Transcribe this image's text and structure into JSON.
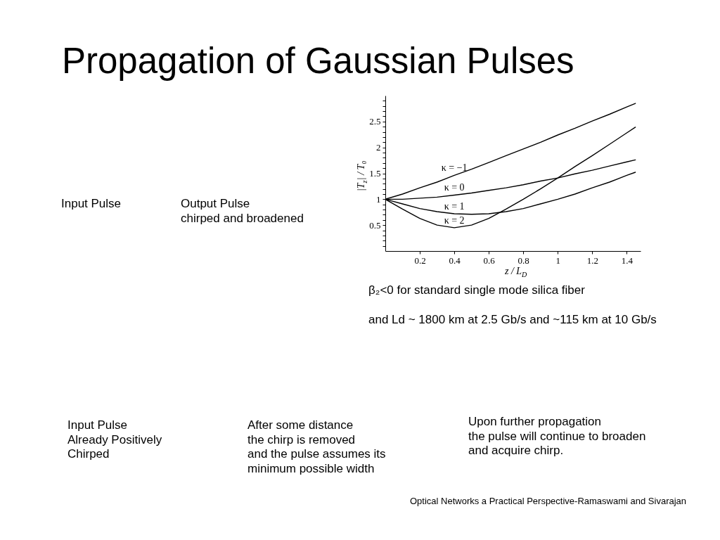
{
  "chart_data": {
    "type": "line",
    "title": "Propagation of Gaussian Pulses",
    "xlabel": "z / L$_{D}$",
    "ylabel": "|T$_{z}$| / T₀",
    "x": [
      0,
      0.1,
      0.2,
      0.3,
      0.4,
      0.5,
      0.6,
      0.7,
      0.8,
      0.9,
      1.0,
      1.1,
      1.2,
      1.3,
      1.4,
      1.45
    ],
    "xlim": [
      0,
      1.48
    ],
    "ylim": [
      0,
      3
    ],
    "xticks": [
      0.2,
      0.4,
      0.6,
      0.8,
      1,
      1.2,
      1.4
    ],
    "yticks": [
      {
        "value": 0.1,
        "label": null
      },
      {
        "value": 0.2,
        "label": null
      },
      {
        "value": 0.3,
        "label": null
      },
      {
        "value": 0.4,
        "label": null
      },
      0.5,
      {
        "value": 0.6,
        "label": null
      },
      {
        "value": 0.7,
        "label": null
      },
      {
        "value": 0.8,
        "label": null
      },
      {
        "value": 0.9,
        "label": null
      },
      1,
      {
        "value": 1.1,
        "label": null
      },
      {
        "value": 1.2,
        "label": null
      },
      {
        "value": 1.3,
        "label": null
      },
      {
        "value": 1.4,
        "label": null
      },
      1.5,
      {
        "value": 1.6,
        "label": null
      },
      {
        "value": 1.7,
        "label": null
      },
      {
        "value": 1.8,
        "label": null
      },
      {
        "value": 1.9,
        "label": null
      },
      2,
      {
        "value": 2.1,
        "label": null
      },
      {
        "value": 2.2,
        "label": null
      },
      {
        "value": 2.3,
        "label": null
      },
      {
        "value": 2.4,
        "label": null
      },
      2.5,
      {
        "value": 2.6,
        "label": null
      },
      {
        "value": 2.7,
        "label": null
      },
      {
        "value": 2.8,
        "label": null
      },
      {
        "value": 2.9,
        "label": null
      }
    ],
    "grid": false,
    "legend": false,
    "marker": "none",
    "line_style": "solid",
    "series": [
      {
        "name": "κ = −1",
        "color": "#000000",
        "values": [
          1.0,
          1.1,
          1.22,
          1.33,
          1.46,
          1.58,
          1.71,
          1.84,
          1.97,
          2.1,
          2.24,
          2.37,
          2.51,
          2.64,
          2.78,
          2.85
        ]
      },
      {
        "name": "κ = 0",
        "color": "#000000",
        "values": [
          1.0,
          1.0,
          1.02,
          1.04,
          1.08,
          1.12,
          1.17,
          1.22,
          1.28,
          1.35,
          1.41,
          1.49,
          1.56,
          1.64,
          1.72,
          1.76
        ]
      },
      {
        "name": "κ = 1",
        "color": "#000000",
        "values": [
          1.0,
          0.91,
          0.82,
          0.76,
          0.72,
          0.71,
          0.72,
          0.76,
          0.82,
          0.91,
          1.0,
          1.1,
          1.22,
          1.33,
          1.46,
          1.52
        ]
      },
      {
        "name": "κ = 2",
        "color": "#000000",
        "values": [
          1.0,
          0.81,
          0.63,
          0.5,
          0.45,
          0.5,
          0.63,
          0.81,
          1.0,
          1.2,
          1.41,
          1.63,
          1.84,
          2.06,
          2.28,
          2.39
        ]
      }
    ],
    "annotations": [
      "Input Pulse",
      "Output Pulse\nchirped and broadened",
      "β₂<0 for standard single mode silica fiber",
      "and Ld ~ 1800 km at 2.5 Gb/s and ~115 km at 10 Gb/s",
      "Input Pulse\nAlready Positively\nChirped",
      "After some distance\nthe chirp is removed\nand the pulse assumes its\nminimum possible width",
      "Upon further propagation\nthe pulse will continue to broaden\nand acquire chirp.",
      "Optical Networks a Practical Perspective-Ramaswami and Sivarajan"
    ]
  }
}
